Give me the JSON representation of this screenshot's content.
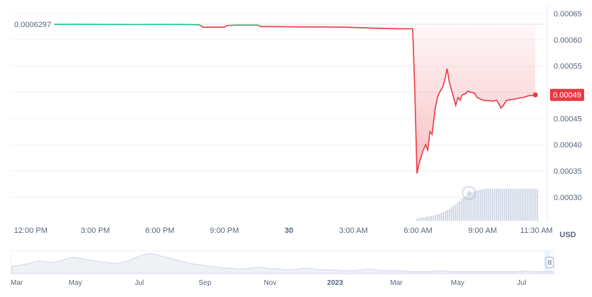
{
  "chart_data": {
    "type": "line",
    "series": [
      {
        "values": [
          [
            0.0,
            0.0006297
          ],
          [
            0.5,
            0.0006292
          ],
          [
            1.0,
            0.0006294
          ],
          [
            2.0,
            0.0006296
          ],
          [
            3.0,
            0.0006294
          ],
          [
            4.0,
            0.0006293
          ],
          [
            5.0,
            0.0006292
          ],
          [
            6.0,
            0.0006295
          ],
          [
            7.0,
            0.0006293
          ],
          [
            7.5,
            0.000629
          ],
          [
            7.85,
            0.0006285
          ],
          [
            8.0,
            0.000624
          ],
          [
            8.5,
            0.000624
          ],
          [
            9.0,
            0.000624
          ],
          [
            9.1,
            0.000627
          ],
          [
            9.5,
            0.000628
          ],
          [
            10.0,
            0.000628
          ],
          [
            10.55,
            0.000628
          ],
          [
            10.7,
            0.000625
          ],
          [
            11.5,
            0.000625
          ],
          [
            12.5,
            0.0006245
          ],
          [
            13.5,
            0.0006243
          ],
          [
            14.5,
            0.0006242
          ],
          [
            15.0,
            0.0006235
          ],
          [
            16.0,
            0.000622
          ],
          [
            17.0,
            0.000621
          ],
          [
            17.5,
            0.000621
          ],
          [
            17.75,
            0.000621
          ],
          [
            17.85,
            0.0005
          ],
          [
            17.95,
            0.000345
          ],
          [
            18.05,
            0.000365
          ],
          [
            18.2,
            0.000385
          ],
          [
            18.35,
            0.0004
          ],
          [
            18.45,
            0.00039
          ],
          [
            18.55,
            0.000425
          ],
          [
            18.65,
            0.00042
          ],
          [
            18.8,
            0.00047
          ],
          [
            18.9,
            0.00049
          ],
          [
            19.0,
            0.0005
          ],
          [
            19.15,
            0.00051
          ],
          [
            19.25,
            0.000525
          ],
          [
            19.35,
            0.000545
          ],
          [
            19.45,
            0.00052
          ],
          [
            19.55,
            0.000505
          ],
          [
            19.65,
            0.00049
          ],
          [
            19.75,
            0.000475
          ],
          [
            19.85,
            0.00049
          ],
          [
            19.95,
            0.000485
          ],
          [
            20.05,
            0.000495
          ],
          [
            20.2,
            0.000497
          ],
          [
            20.3,
            0.000502
          ],
          [
            20.45,
            0.0005
          ],
          [
            20.6,
            0.000499
          ],
          [
            20.75,
            0.00049
          ],
          [
            20.9,
            0.000487
          ],
          [
            21.1,
            0.000484
          ],
          [
            21.3,
            0.000484
          ],
          [
            21.5,
            0.000483
          ],
          [
            21.65,
            0.000485
          ],
          [
            21.75,
            0.000478
          ],
          [
            21.85,
            0.00047
          ],
          [
            21.95,
            0.000474
          ],
          [
            22.1,
            0.000484
          ],
          [
            22.3,
            0.000486
          ],
          [
            22.5,
            0.000487
          ],
          [
            22.7,
            0.000489
          ],
          [
            22.9,
            0.00049
          ],
          [
            23.1,
            0.000493
          ],
          [
            23.3,
            0.000494
          ],
          [
            23.45,
            0.000495
          ]
        ]
      }
    ],
    "x_ticks": [
      {
        "label": "12:00 PM",
        "value": 0
      },
      {
        "label": "3:00 PM",
        "value": 3
      },
      {
        "label": "6:00 PM",
        "value": 6
      },
      {
        "label": "9:00 PM",
        "value": 9
      },
      {
        "label": "30",
        "value": 12,
        "bold": true
      },
      {
        "label": "3:00 AM",
        "value": 15
      },
      {
        "label": "6:00 AM",
        "value": 18
      },
      {
        "label": "9:00 AM",
        "value": 21
      },
      {
        "label": "11:30 AM",
        "value": 23.5
      }
    ],
    "xlim": [
      -0.9,
      24.0
    ],
    "y_ticks": [
      "0.00065",
      "0.00060",
      "0.00055",
      "0.00050",
      "0.00045",
      "0.00040",
      "0.00035",
      "0.00030"
    ],
    "ylim": [
      0.000255,
      0.000665
    ],
    "reference_price": "0.0006297",
    "current_price": "0.00049",
    "currency": "USD",
    "colors": {
      "up": "#16c784",
      "down": "#ea3943",
      "grid": "#eff2f5",
      "text": "#58667e",
      "navigator": "#a6b0c3"
    },
    "volume": [
      3,
      4,
      4,
      5,
      5,
      6,
      6,
      7,
      7,
      8,
      9,
      10,
      11,
      12,
      14,
      15,
      17,
      19,
      21,
      23,
      26,
      28,
      31,
      33,
      35,
      37,
      39,
      40,
      41,
      42,
      43,
      44,
      44,
      45,
      45,
      45,
      45,
      45,
      45,
      45,
      45,
      45,
      45,
      45,
      45,
      45,
      45,
      45,
      45,
      45,
      45,
      45,
      45,
      45,
      45,
      45,
      45,
      45,
      45,
      45
    ],
    "navigator": {
      "x_ticks": [
        {
          "label": "Mar",
          "pos": 0.01
        },
        {
          "label": "May",
          "pos": 0.118
        },
        {
          "label": "Jul",
          "pos": 0.236
        },
        {
          "label": "Sep",
          "pos": 0.357
        },
        {
          "label": "Nov",
          "pos": 0.477
        },
        {
          "label": "2023",
          "pos": 0.597,
          "bold": true
        },
        {
          "label": "Mar",
          "pos": 0.71
        },
        {
          "label": "May",
          "pos": 0.823
        },
        {
          "label": "Jul",
          "pos": 0.941
        }
      ],
      "values": [
        8,
        9,
        10,
        12,
        14,
        13,
        12,
        14,
        16,
        18,
        17,
        15,
        14,
        13,
        12,
        11,
        12,
        14,
        17,
        20,
        22,
        21,
        19,
        17,
        15,
        13,
        11,
        10,
        9,
        8,
        7,
        6,
        6,
        5,
        5,
        6,
        7,
        6,
        5,
        5,
        4,
        4,
        5,
        6,
        5,
        4,
        4,
        4,
        3,
        3,
        3,
        4,
        5,
        4,
        3,
        3,
        3,
        3,
        2,
        2,
        2,
        2,
        3,
        3,
        2,
        2,
        2,
        2,
        2,
        2,
        2,
        2,
        2,
        2,
        2,
        3,
        2,
        2,
        2,
        2
      ]
    }
  }
}
